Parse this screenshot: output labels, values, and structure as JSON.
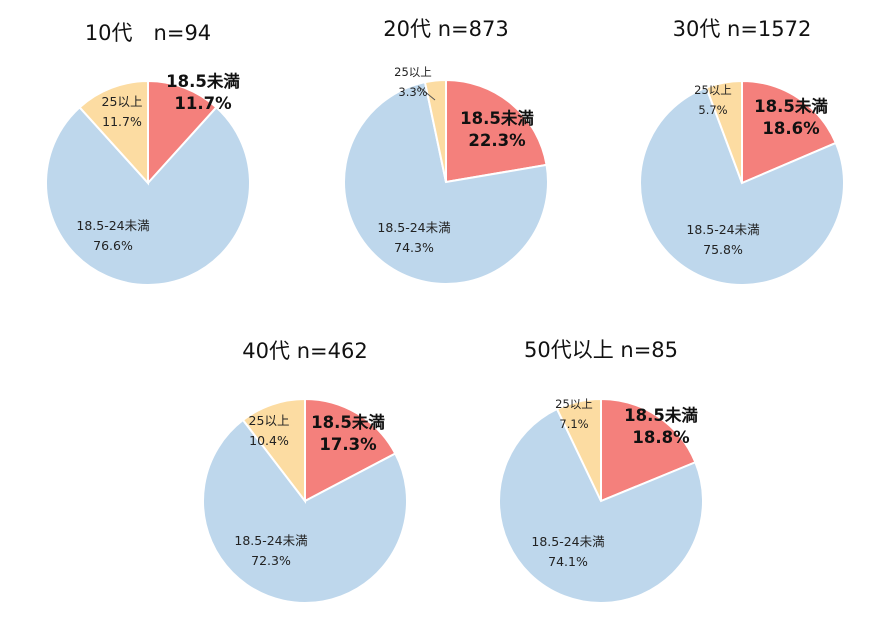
{
  "chart_data": [
    {
      "type": "pie",
      "title": "10代　n=94",
      "slices": [
        {
          "label": "18.5未満",
          "value": 11.7,
          "value_label": "11.7%",
          "color": "#f4807c"
        },
        {
          "label": "18.5-24未満",
          "value": 76.6,
          "value_label": "76.6%",
          "color": "#bed7ec"
        },
        {
          "label": "25以上",
          "value": 11.7,
          "value_label": "11.7%",
          "color": "#fcdca2"
        }
      ]
    },
    {
      "type": "pie",
      "title": "20代 n=873",
      "slices": [
        {
          "label": "18.5未満",
          "value": 22.3,
          "value_label": "22.3%",
          "color": "#f4807c"
        },
        {
          "label": "18.5-24未満",
          "value": 74.3,
          "value_label": "74.3%",
          "color": "#bed7ec"
        },
        {
          "label": "25以上",
          "value": 3.3,
          "value_label": "3.3%",
          "color": "#fcdca2"
        }
      ]
    },
    {
      "type": "pie",
      "title": "30代 n=1572",
      "slices": [
        {
          "label": "18.5未満",
          "value": 18.6,
          "value_label": "18.6%",
          "color": "#f4807c"
        },
        {
          "label": "18.5-24未満",
          "value": 75.8,
          "value_label": "75.8%",
          "color": "#bed7ec"
        },
        {
          "label": "25以上",
          "value": 5.7,
          "value_label": "5.7%",
          "color": "#fcdca2"
        }
      ]
    },
    {
      "type": "pie",
      "title": "40代 n=462",
      "slices": [
        {
          "label": "18.5未満",
          "value": 17.3,
          "value_label": "17.3%",
          "color": "#f4807c"
        },
        {
          "label": "18.5-24未満",
          "value": 72.3,
          "value_label": "72.3%",
          "color": "#bed7ec"
        },
        {
          "label": "25以上",
          "value": 10.4,
          "value_label": "10.4%",
          "color": "#fcdca2"
        }
      ]
    },
    {
      "type": "pie",
      "title": "50代以上 n=85",
      "slices": [
        {
          "label": "18.5未満",
          "value": 18.8,
          "value_label": "18.8%",
          "color": "#f4807c"
        },
        {
          "label": "18.5-24未満",
          "value": 74.1,
          "value_label": "74.1%",
          "color": "#bed7ec"
        },
        {
          "label": "25以上",
          "value": 7.1,
          "value_label": "7.1%",
          "color": "#fcdca2"
        }
      ]
    }
  ]
}
